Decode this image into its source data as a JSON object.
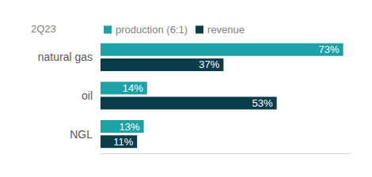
{
  "chart_data": {
    "type": "bar",
    "title": "2Q23",
    "orientation": "horizontal",
    "categories": [
      "natural gas",
      "oil",
      "NGL"
    ],
    "series": [
      {
        "name": "production (6:1)",
        "color": "#1ca1a6",
        "values": [
          73,
          14,
          13
        ],
        "value_labels": [
          "73%",
          "14%",
          "13%"
        ]
      },
      {
        "name": "revenue",
        "color": "#0b3c49",
        "values": [
          37,
          53,
          11
        ],
        "value_labels": [
          "37%",
          "53%",
          "11%"
        ]
      }
    ],
    "xlim": [
      0,
      75
    ],
    "grid": false,
    "legend": "top",
    "data_labels": true,
    "tick_labels": "y"
  }
}
